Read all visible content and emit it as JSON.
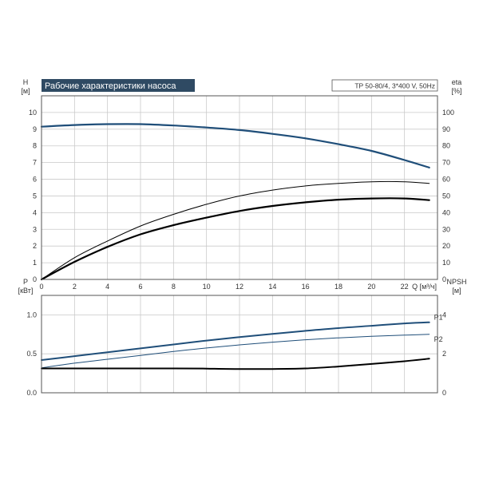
{
  "colors": {
    "blue": "#1f4e79",
    "black": "#000000",
    "grid": "#c9c9c9",
    "title_bg": "#2f4a63"
  },
  "title": "Рабочие характеристики насоса",
  "model": "TP 50-80/4, 3*400 V, 50Hz",
  "chart_data": [
    {
      "type": "line",
      "xlabel": "Q [м³/ч]",
      "ylabel": "H [м]",
      "ylabel_right": "eta [%]",
      "xlim": [
        0,
        24
      ],
      "ylim": [
        0,
        11
      ],
      "ylim_right": [
        0,
        110
      ],
      "grid": true,
      "x_ticks": [
        0,
        2,
        4,
        6,
        8,
        10,
        12,
        14,
        16,
        18,
        20,
        22
      ],
      "y_ticks": [
        0,
        1,
        2,
        3,
        4,
        5,
        6,
        7,
        8,
        9,
        10
      ],
      "y_ticks_right": [
        0,
        10,
        20,
        30,
        40,
        50,
        60,
        70,
        80,
        90,
        100
      ],
      "series": [
        {
          "axis": "left",
          "color": "#1f4e79",
          "width": 2.2,
          "x": [
            0,
            2,
            4,
            6,
            8,
            10,
            12,
            14,
            16,
            18,
            20,
            22,
            23.5
          ],
          "y": [
            9.15,
            9.25,
            9.3,
            9.3,
            9.22,
            9.1,
            8.95,
            8.72,
            8.45,
            8.1,
            7.7,
            7.15,
            6.7
          ]
        },
        {
          "axis": "right",
          "color": "#000000",
          "width": 1.0,
          "x": [
            0,
            2,
            4,
            6,
            8,
            10,
            12,
            14,
            16,
            18,
            20,
            22,
            23.5
          ],
          "y": [
            0,
            13,
            23,
            32,
            39,
            45,
            50,
            53.5,
            56,
            57.5,
            58.5,
            58.5,
            57.5
          ]
        },
        {
          "axis": "left",
          "color": "#000000",
          "width": 2.2,
          "x": [
            0,
            2,
            4,
            6,
            8,
            10,
            12,
            14,
            16,
            18,
            20,
            22,
            23.5
          ],
          "y": [
            0,
            1.05,
            1.95,
            2.7,
            3.25,
            3.7,
            4.1,
            4.4,
            4.62,
            4.78,
            4.85,
            4.85,
            4.75
          ]
        }
      ]
    },
    {
      "type": "line",
      "xlabel": "",
      "ylabel": "P [кВт]",
      "ylabel_right": "NPSH [м]",
      "xlim": [
        0,
        24
      ],
      "ylim": [
        0,
        1.25
      ],
      "ylim_right": [
        0,
        5
      ],
      "grid": true,
      "y_ticks": [
        0.0,
        0.5,
        1.0
      ],
      "y_tick_labels": [
        "0.0",
        "0.5",
        "1.0"
      ],
      "y_ticks_right": [
        0,
        2,
        4
      ],
      "series": [
        {
          "name": "P1",
          "axis": "left",
          "color": "#1f4e79",
          "width": 2.0,
          "x": [
            0,
            2,
            4,
            6,
            8,
            10,
            12,
            14,
            16,
            18,
            20,
            22,
            23.5
          ],
          "y": [
            0.42,
            0.47,
            0.52,
            0.57,
            0.62,
            0.67,
            0.715,
            0.755,
            0.795,
            0.83,
            0.86,
            0.89,
            0.905
          ]
        },
        {
          "name": "P2",
          "axis": "left",
          "color": "#1f4e79",
          "width": 1.0,
          "x": [
            0,
            2,
            4,
            6,
            8,
            10,
            12,
            14,
            16,
            18,
            20,
            22,
            23.5
          ],
          "y": [
            0.32,
            0.38,
            0.43,
            0.48,
            0.53,
            0.575,
            0.615,
            0.65,
            0.68,
            0.705,
            0.725,
            0.74,
            0.75
          ]
        },
        {
          "axis": "right",
          "color": "#000000",
          "width": 2.0,
          "x": [
            0,
            2,
            4,
            6,
            8,
            10,
            12,
            14,
            16,
            18,
            20,
            22,
            23.5
          ],
          "y": [
            1.25,
            1.25,
            1.25,
            1.25,
            1.25,
            1.24,
            1.22,
            1.22,
            1.25,
            1.35,
            1.48,
            1.62,
            1.75
          ]
        }
      ]
    }
  ]
}
